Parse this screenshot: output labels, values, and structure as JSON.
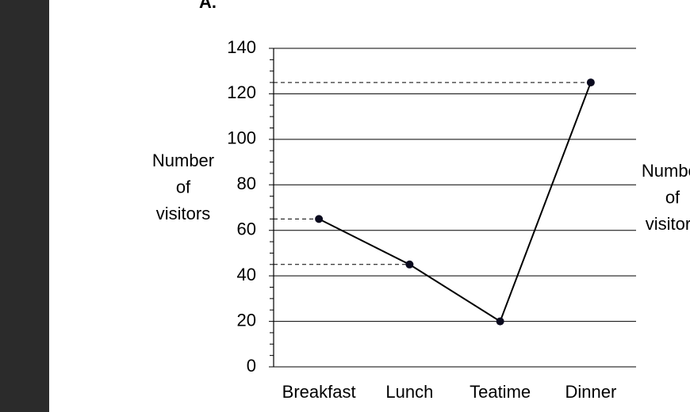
{
  "chart_data": {
    "type": "line",
    "panel_label": "A.",
    "y_label": "Number of visitors",
    "right_label": "Number of visitors",
    "categories": [
      "Breakfast",
      "Lunch",
      "Teatime",
      "Dinner"
    ],
    "values": [
      65,
      45,
      20,
      125
    ],
    "guide_lines": [
      true,
      true,
      false,
      true
    ],
    "color": "#000000",
    "ylim": [
      0,
      140
    ],
    "yticks": [
      0,
      20,
      40,
      60,
      80,
      100,
      120,
      140
    ],
    "minor_ticks_per_interval": 4,
    "grid": true
  }
}
